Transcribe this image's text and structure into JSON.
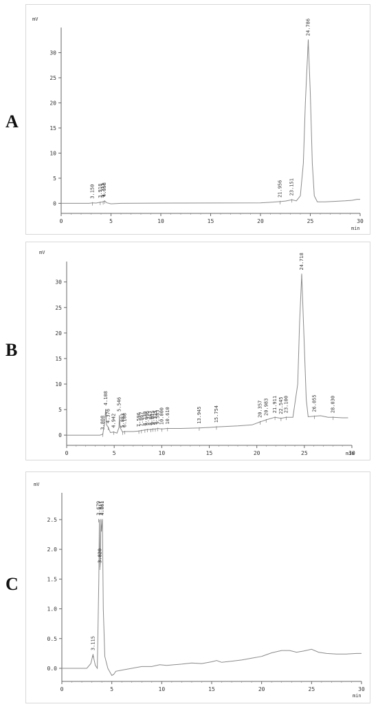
{
  "chart_data": [
    {
      "type": "line",
      "panel_label": "A",
      "ylabel": "mV",
      "xlabel": "min",
      "xlim": [
        0,
        30
      ],
      "ylim": [
        -2,
        35
      ],
      "x_ticks": [
        0,
        5,
        10,
        15,
        20,
        25,
        30
      ],
      "y_ticks": [
        0,
        5,
        10,
        15,
        20,
        25,
        30
      ],
      "baseline": [
        [
          0,
          0
        ],
        [
          2.8,
          0
        ],
        [
          3.15,
          0.1
        ],
        [
          3.5,
          0.05
        ],
        [
          3.92,
          0.2
        ],
        [
          4.21,
          0.3
        ],
        [
          4.36,
          0.45
        ],
        [
          4.6,
          0.1
        ],
        [
          5.0,
          -0.1
        ],
        [
          6,
          0
        ],
        [
          12,
          0.05
        ],
        [
          20,
          0.1
        ],
        [
          21.0,
          0.2
        ],
        [
          21.96,
          0.35
        ],
        [
          22.5,
          0.45
        ],
        [
          23.15,
          0.7
        ],
        [
          23.6,
          0.5
        ],
        [
          24.0,
          1.5
        ],
        [
          24.3,
          8
        ],
        [
          24.5,
          20
        ],
        [
          24.79,
          32.5
        ],
        [
          25.0,
          22
        ],
        [
          25.2,
          8
        ],
        [
          25.4,
          1.5
        ],
        [
          25.7,
          0.3
        ],
        [
          26.5,
          0.3
        ],
        [
          27.5,
          0.4
        ],
        [
          28.5,
          0.5
        ],
        [
          29.2,
          0.6
        ],
        [
          29.7,
          0.8
        ],
        [
          30,
          0.8
        ]
      ],
      "peaks": [
        {
          "label": "3.150",
          "x": 3.15,
          "y": 0.1
        },
        {
          "label": "3.918",
          "x": 3.918,
          "y": 0.2
        },
        {
          "label": "4.213",
          "x": 4.213,
          "y": 0.3
        },
        {
          "label": "4.358",
          "x": 4.358,
          "y": 0.45
        },
        {
          "label": "21.956",
          "x": 21.956,
          "y": 0.35
        },
        {
          "label": "23.151",
          "x": 23.151,
          "y": 0.7
        },
        {
          "label": "24.786",
          "x": 24.786,
          "y": 32.5
        }
      ]
    },
    {
      "type": "line",
      "panel_label": "B",
      "ylabel": "mV",
      "xlabel": "min",
      "xlim": [
        0,
        30
      ],
      "ylim": [
        -2,
        34
      ],
      "x_ticks": [
        0,
        5,
        10,
        15,
        20,
        25,
        30
      ],
      "y_ticks": [
        0,
        5,
        10,
        15,
        20,
        25,
        30
      ],
      "baseline": [
        [
          0,
          0
        ],
        [
          3.5,
          0
        ],
        [
          3.8,
          0.2
        ],
        [
          4.0,
          2.5
        ],
        [
          4.1,
          5.0
        ],
        [
          4.2,
          2.0
        ],
        [
          4.38,
          1.5
        ],
        [
          4.6,
          0.5
        ],
        [
          4.94,
          0.6
        ],
        [
          5.3,
          0.4
        ],
        [
          5.5,
          1.5
        ],
        [
          5.55,
          3.8
        ],
        [
          5.62,
          1.5
        ],
        [
          5.88,
          0.6
        ],
        [
          6.11,
          0.7
        ],
        [
          7.0,
          0.7
        ],
        [
          7.6,
          0.8
        ],
        [
          7.87,
          0.9
        ],
        [
          8.23,
          1.0
        ],
        [
          8.5,
          1.1
        ],
        [
          8.87,
          1.1
        ],
        [
          9.08,
          1.2
        ],
        [
          9.33,
          1.2
        ],
        [
          9.58,
          1.3
        ],
        [
          10.0,
          1.2
        ],
        [
          10.6,
          1.3
        ],
        [
          12,
          1.3
        ],
        [
          13.95,
          1.4
        ],
        [
          15.0,
          1.5
        ],
        [
          15.75,
          1.6
        ],
        [
          18,
          1.8
        ],
        [
          19.5,
          2.0
        ],
        [
          20.36,
          2.6
        ],
        [
          21.0,
          3.0
        ],
        [
          21.91,
          3.5
        ],
        [
          22.55,
          3.3
        ],
        [
          23.1,
          3.5
        ],
        [
          23.8,
          3.5
        ],
        [
          24.3,
          10
        ],
        [
          24.5,
          22
        ],
        [
          24.72,
          31.5
        ],
        [
          24.95,
          20
        ],
        [
          25.2,
          7
        ],
        [
          25.4,
          3.6
        ],
        [
          26.0,
          3.7
        ],
        [
          26.7,
          3.8
        ],
        [
          27.5,
          3.5
        ],
        [
          28.03,
          3.5
        ],
        [
          29,
          3.4
        ],
        [
          29.6,
          3.4
        ]
      ],
      "peaks": [
        {
          "label": "3.808",
          "x": 3.808,
          "y": 0.2
        },
        {
          "label": "4.108",
          "x": 4.108,
          "y": 5.0
        },
        {
          "label": "4.376",
          "x": 4.376,
          "y": 1.5
        },
        {
          "label": "4.942",
          "x": 4.942,
          "y": 0.6
        },
        {
          "label": "5.546",
          "x": 5.546,
          "y": 3.8
        },
        {
          "label": "5.883",
          "x": 5.883,
          "y": 0.6
        },
        {
          "label": "6.108",
          "x": 6.108,
          "y": 0.7
        },
        {
          "label": "7.596",
          "x": 7.596,
          "y": 0.8
        },
        {
          "label": "7.867",
          "x": 7.867,
          "y": 0.9
        },
        {
          "label": "8.230",
          "x": 8.23,
          "y": 1.0
        },
        {
          "label": "8.496",
          "x": 8.496,
          "y": 1.1
        },
        {
          "label": "8.867",
          "x": 8.867,
          "y": 1.1
        },
        {
          "label": "9.075",
          "x": 9.075,
          "y": 1.2
        },
        {
          "label": "9.325",
          "x": 9.325,
          "y": 1.2
        },
        {
          "label": "9.583",
          "x": 9.583,
          "y": 1.3
        },
        {
          "label": "10.000",
          "x": 10.0,
          "y": 1.2
        },
        {
          "label": "10.610",
          "x": 10.61,
          "y": 1.3
        },
        {
          "label": "13.945",
          "x": 13.945,
          "y": 1.4
        },
        {
          "label": "15.754",
          "x": 15.754,
          "y": 1.6
        },
        {
          "label": "20.357",
          "x": 20.357,
          "y": 2.6
        },
        {
          "label": "20.983",
          "x": 20.983,
          "y": 3.0
        },
        {
          "label": "21.911",
          "x": 21.911,
          "y": 3.5
        },
        {
          "label": "22.545",
          "x": 22.545,
          "y": 3.3
        },
        {
          "label": "23.100",
          "x": 23.1,
          "y": 3.5
        },
        {
          "label": "24.718",
          "x": 24.718,
          "y": 31.5
        },
        {
          "label": "26.055",
          "x": 26.055,
          "y": 3.7
        },
        {
          "label": "28.030",
          "x": 28.03,
          "y": 3.5
        }
      ]
    },
    {
      "type": "line",
      "panel_label": "C",
      "ylabel": "mV",
      "xlabel": "min",
      "xlim": [
        0,
        30
      ],
      "ylim": [
        -0.22,
        2.95
      ],
      "x_ticks": [
        0,
        5,
        10,
        15,
        20,
        25,
        30
      ],
      "y_ticks": [
        0.0,
        0.5,
        1.0,
        1.5,
        2.0,
        2.5
      ],
      "y_tick_labels": [
        "0.0",
        "0.5",
        "1.0",
        "1.5",
        "2.0",
        "2.5"
      ],
      "baseline": [
        [
          0,
          0
        ],
        [
          2.5,
          0
        ],
        [
          2.9,
          0.08
        ],
        [
          3.12,
          0.23
        ],
        [
          3.35,
          0.05
        ],
        [
          3.55,
          0.0
        ],
        [
          3.7,
          1.5
        ],
        [
          3.76,
          2.5
        ],
        [
          3.82,
          1.7
        ],
        [
          3.86,
          1.8
        ],
        [
          3.91,
          2.5
        ],
        [
          3.96,
          2.3
        ],
        [
          4.06,
          2.5
        ],
        [
          4.15,
          1.0
        ],
        [
          4.3,
          0.2
        ],
        [
          4.6,
          0.0
        ],
        [
          5.0,
          -0.12
        ],
        [
          5.2,
          -0.1
        ],
        [
          5.4,
          -0.05
        ],
        [
          6,
          -0.03
        ],
        [
          7,
          0.0
        ],
        [
          8,
          0.03
        ],
        [
          9,
          0.03
        ],
        [
          9.8,
          0.06
        ],
        [
          10.5,
          0.05
        ],
        [
          12,
          0.07
        ],
        [
          13,
          0.09
        ],
        [
          14,
          0.08
        ],
        [
          15,
          0.11
        ],
        [
          15.5,
          0.13
        ],
        [
          16,
          0.1
        ],
        [
          17,
          0.12
        ],
        [
          18,
          0.14
        ],
        [
          19,
          0.17
        ],
        [
          20,
          0.2
        ],
        [
          21,
          0.26
        ],
        [
          22,
          0.3
        ],
        [
          22.8,
          0.3
        ],
        [
          23.5,
          0.27
        ],
        [
          24.2,
          0.29
        ],
        [
          25,
          0.32
        ],
        [
          25.7,
          0.27
        ],
        [
          26.5,
          0.25
        ],
        [
          27.5,
          0.24
        ],
        [
          28.5,
          0.24
        ],
        [
          29.5,
          0.25
        ],
        [
          30,
          0.25
        ]
      ],
      "peaks": [
        {
          "label": "3.115",
          "x": 3.115,
          "y": 0.23
        },
        {
          "label": "3.820",
          "x": 3.82,
          "y": 1.7
        },
        {
          "label": "3.911",
          "x": 3.911,
          "y": 2.5
        },
        {
          "label": "3.679",
          "x": 3.679,
          "y": 2.5
        },
        {
          "label": "4.061",
          "x": 4.061,
          "y": 2.5
        }
      ]
    }
  ]
}
